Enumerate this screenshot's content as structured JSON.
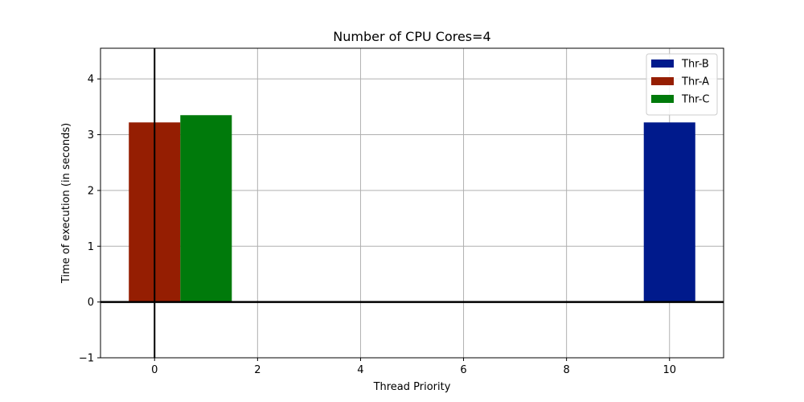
{
  "chart_data": {
    "type": "bar",
    "title": "Number of CPU Cores=4",
    "xlabel": "Thread Priority",
    "ylabel": "Time of execution (in seconds)",
    "xlim": [
      -1.05,
      11.05
    ],
    "ylim": [
      -1,
      4.55
    ],
    "xticks": [
      0,
      2,
      4,
      6,
      8,
      10
    ],
    "yticks": [
      -1,
      0,
      1,
      2,
      3,
      4
    ],
    "grid": true,
    "legend_position": "top-right",
    "bar_width": 1,
    "series": [
      {
        "name": "Thr-B",
        "color": "#001a8c",
        "x": [
          10
        ],
        "values": [
          3.22
        ]
      },
      {
        "name": "Thr-A",
        "color": "#951e02",
        "x": [
          0
        ],
        "values": [
          3.22
        ]
      },
      {
        "name": "Thr-C",
        "color": "#007a0b",
        "x": [
          1
        ],
        "values": [
          3.35
        ]
      }
    ]
  }
}
